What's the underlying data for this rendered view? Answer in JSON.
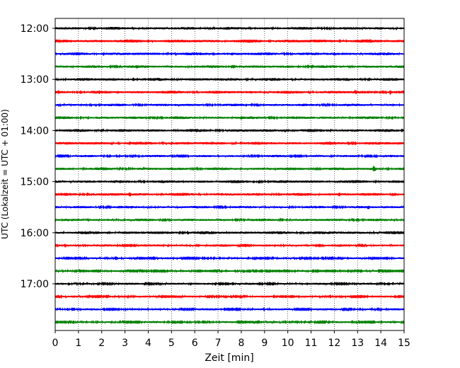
{
  "chart_data": {
    "type": "line",
    "chart_kind": "helicorder",
    "xlabel": "Zeit  [min]",
    "ylabel": "UTC (Lokalzeit = UTC + 01:00)",
    "xlim": [
      0,
      15
    ],
    "x_ticks": [
      "0",
      "1",
      "2",
      "3",
      "4",
      "5",
      "6",
      "7",
      "8",
      "9",
      "10",
      "11",
      "12",
      "13",
      "14",
      "15"
    ],
    "y_tick_labels": [
      "12:00",
      "13:00",
      "14:00",
      "15:00",
      "16:00",
      "17:00"
    ],
    "grid": "vertical dotted",
    "trace_interval_min": 15,
    "color_cycle": [
      "#000000",
      "#ff0000",
      "#0000ff",
      "#008000"
    ],
    "traces": [
      {
        "start": "12:00",
        "color": "#000000",
        "amplitude": 0.14,
        "events": [
          {
            "t": 4.1,
            "a": 0.18
          },
          {
            "t": 9.3,
            "a": 0.2
          }
        ]
      },
      {
        "start": "12:15",
        "color": "#ff0000",
        "amplitude": 0.16,
        "events": [
          {
            "t": 4.1,
            "a": 0.2
          },
          {
            "t": 8.8,
            "a": 0.28
          },
          {
            "t": 10.5,
            "a": 0.22
          },
          {
            "t": 13.55,
            "a": 0.45
          }
        ]
      },
      {
        "start": "12:30",
        "color": "#0000ff",
        "amplitude": 0.15,
        "events": [
          {
            "t": 7.6,
            "a": 0.25
          },
          {
            "t": 8.3,
            "a": 0.22
          },
          {
            "t": 12.0,
            "a": 0.3
          }
        ]
      },
      {
        "start": "12:45",
        "color": "#008000",
        "amplitude": 0.14,
        "events": [
          {
            "t": 3.5,
            "a": 0.38
          },
          {
            "t": 10.0,
            "a": 0.28
          },
          {
            "t": 11.05,
            "a": 0.38
          },
          {
            "t": 14.8,
            "a": 0.25
          }
        ]
      },
      {
        "start": "13:00",
        "color": "#000000",
        "amplitude": 0.15,
        "events": [
          {
            "t": 4.2,
            "a": 0.22
          },
          {
            "t": 9.8,
            "a": 0.25
          },
          {
            "t": 11.0,
            "a": 0.22
          }
        ]
      },
      {
        "start": "13:15",
        "color": "#ff0000",
        "amplitude": 0.15,
        "events": [
          {
            "t": 0.15,
            "a": 0.35
          },
          {
            "t": 1.9,
            "a": 0.32
          },
          {
            "t": 2.7,
            "a": 0.28
          },
          {
            "t": 10.0,
            "a": 0.3
          },
          {
            "t": 12.9,
            "a": 0.4
          },
          {
            "t": 14.4,
            "a": 0.4
          }
        ]
      },
      {
        "start": "13:30",
        "color": "#0000ff",
        "amplitude": 0.13,
        "events": []
      },
      {
        "start": "13:45",
        "color": "#008000",
        "amplitude": 0.14,
        "events": [
          {
            "t": 8.0,
            "a": 0.35
          },
          {
            "t": 9.7,
            "a": 0.22
          },
          {
            "t": 13.9,
            "a": 0.22
          }
        ]
      },
      {
        "start": "14:00",
        "color": "#000000",
        "amplitude": 0.15,
        "events": [
          {
            "t": 6.2,
            "a": 0.2
          },
          {
            "t": 7.5,
            "a": 0.22
          },
          {
            "t": 10.0,
            "a": 0.3
          },
          {
            "t": 10.6,
            "a": 0.22
          }
        ]
      },
      {
        "start": "14:15",
        "color": "#ff0000",
        "amplitude": 0.15,
        "events": [
          {
            "t": 3.2,
            "a": 0.32
          },
          {
            "t": 5.0,
            "a": 0.3
          },
          {
            "t": 5.7,
            "a": 0.28
          },
          {
            "t": 9.6,
            "a": 0.22
          },
          {
            "t": 13.4,
            "a": 0.22
          }
        ]
      },
      {
        "start": "14:30",
        "color": "#0000ff",
        "amplitude": 0.12,
        "events": []
      },
      {
        "start": "14:45",
        "color": "#008000",
        "amplitude": 0.14,
        "events": [
          {
            "t": 3.8,
            "a": 0.28
          },
          {
            "t": 11.0,
            "a": 0.32
          },
          {
            "t": 13.7,
            "a": 0.6
          }
        ]
      },
      {
        "start": "15:00",
        "color": "#000000",
        "amplitude": 0.15,
        "events": [
          {
            "t": 11.4,
            "a": 0.2
          }
        ]
      },
      {
        "start": "15:15",
        "color": "#ff0000",
        "amplitude": 0.15,
        "events": [
          {
            "t": 3.2,
            "a": 0.42
          },
          {
            "t": 9.0,
            "a": 0.22
          },
          {
            "t": 9.7,
            "a": 0.25
          },
          {
            "t": 12.2,
            "a": 0.35
          },
          {
            "t": 12.6,
            "a": 0.22
          },
          {
            "t": 14.6,
            "a": 0.35
          }
        ]
      },
      {
        "start": "15:30",
        "color": "#0000ff",
        "amplitude": 0.13,
        "events": [
          {
            "t": 9.7,
            "a": 0.25
          },
          {
            "t": 13.45,
            "a": 0.45
          }
        ]
      },
      {
        "start": "15:45",
        "color": "#008000",
        "amplitude": 0.13,
        "events": [
          {
            "t": 12.3,
            "a": 0.2
          }
        ]
      },
      {
        "start": "16:00",
        "color": "#000000",
        "amplitude": 0.15,
        "events": [
          {
            "t": 2.0,
            "a": 0.22
          },
          {
            "t": 4.5,
            "a": 0.22
          },
          {
            "t": 5.2,
            "a": 0.2
          }
        ]
      },
      {
        "start": "16:15",
        "color": "#ff0000",
        "amplitude": 0.12,
        "events": []
      },
      {
        "start": "16:30",
        "color": "#0000ff",
        "amplitude": 0.1,
        "events": []
      },
      {
        "start": "16:45",
        "color": "#008000",
        "amplitude": 0.09,
        "events": []
      },
      {
        "start": "17:00",
        "color": "#000000",
        "amplitude": 0.11,
        "events": [
          {
            "t": 13.1,
            "a": 0.2
          }
        ]
      },
      {
        "start": "17:15",
        "color": "#ff0000",
        "amplitude": 0.1,
        "events": []
      },
      {
        "start": "17:30",
        "color": "#0000ff",
        "amplitude": 0.11,
        "events": [
          {
            "t": 13.1,
            "a": 0.3
          }
        ]
      },
      {
        "start": "17:45",
        "color": "#008000",
        "amplitude": 0.1,
        "events": [
          {
            "t": 1.3,
            "a": 0.15
          }
        ]
      }
    ]
  }
}
